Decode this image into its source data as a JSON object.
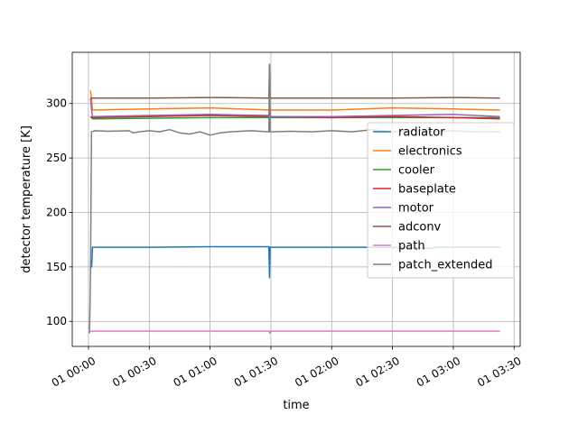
{
  "chart_data": {
    "type": "line",
    "xlabel": "time",
    "ylabel": "detector temperature [K]",
    "x_unit": "minutes after 01 00:00",
    "x_ticks": [
      {
        "value": 0,
        "label": "01 00:00"
      },
      {
        "value": 30,
        "label": "01 00:30"
      },
      {
        "value": 60,
        "label": "01 01:00"
      },
      {
        "value": 90,
        "label": "01 01:30"
      },
      {
        "value": 120,
        "label": "01 02:00"
      },
      {
        "value": 150,
        "label": "01 02:30"
      },
      {
        "value": 180,
        "label": "01 03:00"
      },
      {
        "value": 210,
        "label": "01 03:30"
      }
    ],
    "xlim": [
      -8,
      213
    ],
    "ylim": [
      77,
      347
    ],
    "y_ticks": [
      100,
      150,
      200,
      250,
      300
    ],
    "grid": true,
    "legend_position": "right",
    "series": [
      {
        "name": "radiator",
        "color": "#1f77b4",
        "x": [
          1,
          1.6,
          2,
          30,
          60,
          89,
          89.3,
          89.6,
          90,
          120,
          150,
          170,
          171,
          172,
          200,
          203
        ],
        "y": [
          155,
          150,
          168,
          168,
          168.5,
          168.5,
          140,
          168,
          168,
          168,
          168,
          167,
          168,
          168,
          168,
          168
        ]
      },
      {
        "name": "electronics",
        "color": "#ff7f0e",
        "x": [
          1,
          1.5,
          2,
          30,
          60,
          90,
          120,
          150,
          180,
          203
        ],
        "y": [
          312,
          305,
          294,
          295,
          296,
          294,
          294,
          296,
          295,
          294
        ]
      },
      {
        "name": "cooler",
        "color": "#2ca02c",
        "x": [
          1,
          2,
          60,
          120,
          180,
          203
        ],
        "y": [
          288,
          286,
          287,
          287,
          287,
          287
        ]
      },
      {
        "name": "baseplate",
        "color": "#d62728",
        "x": [
          1,
          2,
          30,
          60,
          90,
          120,
          150,
          180,
          203
        ],
        "y": [
          288,
          287,
          288,
          289,
          288,
          287,
          288,
          287,
          286
        ]
      },
      {
        "name": "motor",
        "color": "#9467bd",
        "x": [
          1,
          1.5,
          2,
          30,
          60,
          89,
          89.4,
          89.8,
          90,
          120,
          150,
          180,
          203
        ],
        "y": [
          305,
          295,
          288,
          289,
          290,
          289,
          300,
          289,
          288,
          288,
          289,
          290,
          288
        ]
      },
      {
        "name": "adconv",
        "color": "#8c564b",
        "x": [
          1,
          2,
          30,
          60,
          89,
          89.3,
          89.6,
          90,
          120,
          150,
          180,
          203
        ],
        "y": [
          305,
          305,
          305,
          305.5,
          305,
          335,
          305,
          305,
          305,
          305,
          305.5,
          305
        ]
      },
      {
        "name": "path",
        "color": "#e377c2",
        "x": [
          1,
          30,
          60,
          89.3,
          89.5,
          90,
          120,
          150,
          180,
          203
        ],
        "y": [
          91,
          91,
          91,
          91,
          89,
          91,
          91,
          91,
          91,
          91
        ]
      },
      {
        "name": "patch_extended",
        "color": "#7f7f7f",
        "x": [
          0.5,
          1,
          1.5,
          3,
          10,
          20,
          22,
          25,
          30,
          35,
          40,
          45,
          50,
          55,
          60,
          65,
          70,
          80,
          89,
          89.3,
          89.6,
          90,
          100,
          110,
          120,
          130,
          140,
          150,
          160,
          170,
          180,
          190,
          203
        ],
        "y": [
          89,
          140,
          274,
          275,
          274.5,
          275,
          273,
          274,
          275,
          274,
          276,
          273,
          272,
          274,
          271,
          273,
          274,
          275,
          274,
          336,
          274,
          274,
          274.5,
          274,
          275,
          274,
          276,
          274,
          275,
          274,
          275,
          274,
          274
        ]
      }
    ]
  }
}
